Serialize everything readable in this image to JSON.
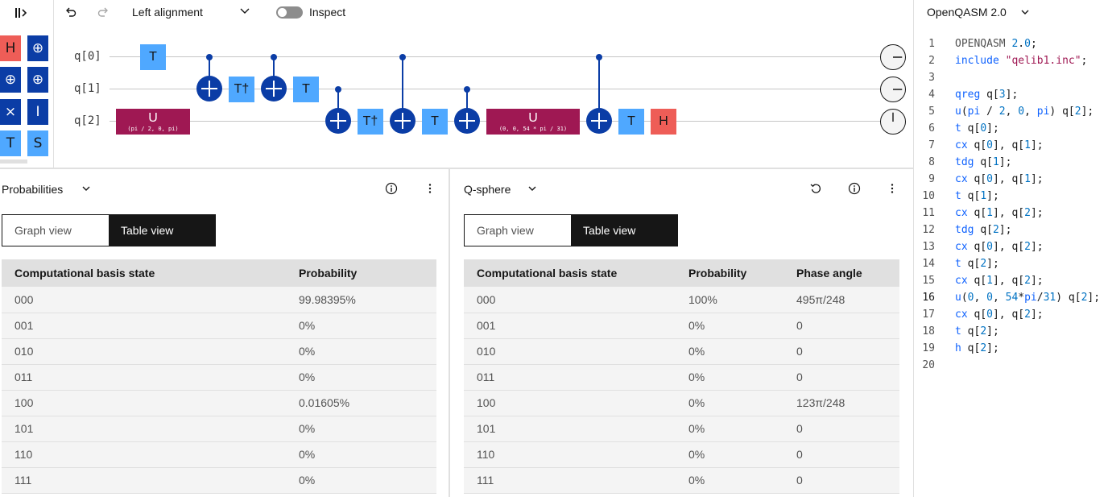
{
  "palette": {
    "gates": [
      "H",
      "⊕",
      "⊕",
      "⊕",
      "⨯",
      "I",
      "T",
      "S"
    ]
  },
  "toolbar": {
    "alignment_label": "Left alignment",
    "inspect_label": "Inspect"
  },
  "circuit": {
    "qubits": [
      "q[0]",
      "q[1]",
      "q[2]"
    ],
    "gates": {
      "t": "T",
      "tdg": "T†",
      "h": "H",
      "u": "U",
      "u1_params": "(pi / 2, 0, pi)",
      "u2_params": "(0, 0, 54 * pi / 31)"
    }
  },
  "probabilities": {
    "title": "Probabilities",
    "views": [
      "Graph view",
      "Table view"
    ],
    "columns": [
      "Computational basis state",
      "Probability"
    ],
    "rows": [
      [
        "000",
        "99.98395%"
      ],
      [
        "001",
        "0%"
      ],
      [
        "010",
        "0%"
      ],
      [
        "011",
        "0%"
      ],
      [
        "100",
        "0.01605%"
      ],
      [
        "101",
        "0%"
      ],
      [
        "110",
        "0%"
      ],
      [
        "111",
        "0%"
      ]
    ]
  },
  "qsphere": {
    "title": "Q-sphere",
    "views": [
      "Graph view",
      "Table view"
    ],
    "columns": [
      "Computational basis state",
      "Probability",
      "Phase angle"
    ],
    "rows": [
      [
        "000",
        "100%",
        "495π/248"
      ],
      [
        "001",
        "0%",
        "0"
      ],
      [
        "010",
        "0%",
        "0"
      ],
      [
        "011",
        "0%",
        "0"
      ],
      [
        "100",
        "0%",
        "123π/248"
      ],
      [
        "101",
        "0%",
        "0"
      ],
      [
        "110",
        "0%",
        "0"
      ],
      [
        "111",
        "0%",
        "0"
      ]
    ]
  },
  "editor": {
    "title": "OpenQASM 2.0",
    "active_line": 16,
    "lines": [
      "OPENQASM 2.0;",
      "include \"qelib1.inc\";",
      "",
      "qreg q[3];",
      "u(pi / 2, 0, pi) q[2];",
      "t q[0];",
      "cx q[0], q[1];",
      "tdg q[1];",
      "cx q[0], q[1];",
      "t q[1];",
      "cx q[1], q[2];",
      "tdg q[2];",
      "cx q[0], q[2];",
      "t q[2];",
      "cx q[1], q[2];",
      "u(0, 0, 54*pi/31) q[2];",
      "cx q[0], q[2];",
      "t q[2];",
      "h q[2];",
      ""
    ]
  },
  "colors": {
    "accent_blue": "#0b3da6",
    "light_blue": "#4fa8ff",
    "red": "#ee5d57",
    "magenta": "#9f1853"
  }
}
